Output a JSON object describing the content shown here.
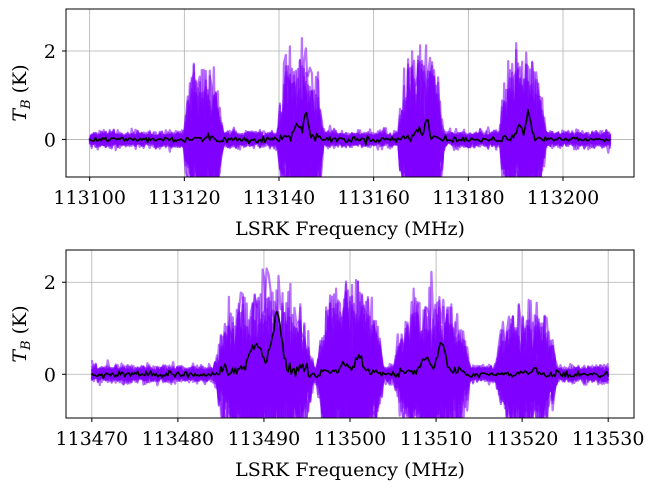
{
  "chart_data": [
    {
      "type": "line",
      "xlabel": "LSRK Frequency (MHz)",
      "ylabel": "T_B (K)",
      "ylabel_parts": {
        "main": "T",
        "sub": "B",
        "unit": "(K)"
      },
      "xlim": [
        113095,
        113215
      ],
      "ylim": [
        -0.85,
        2.95
      ],
      "xticks": [
        113100,
        113120,
        113140,
        113160,
        113180,
        113200
      ],
      "yticks": [
        0,
        2
      ],
      "grid": true,
      "colors": {
        "samples": "#8000ff",
        "mean": "#000000"
      },
      "x_range": [
        113100,
        113210
      ],
      "noise_level": 0.08,
      "peaks": [
        {
          "center": 113124,
          "width": 3.0,
          "sample_amp": 2.05,
          "mean_amp": 0.05
        },
        {
          "center": 113144.5,
          "width": 3.5,
          "sample_amp": 2.7,
          "mean_amp": 0.65
        },
        {
          "center": 113170,
          "width": 3.5,
          "sample_amp": 2.6,
          "mean_amp": 0.45
        },
        {
          "center": 113191.5,
          "width": 3.5,
          "sample_amp": 2.65,
          "mean_amp": 0.6
        }
      ]
    },
    {
      "type": "line",
      "xlabel": "LSRK Frequency (MHz)",
      "ylabel": "T_B (K)",
      "ylabel_parts": {
        "main": "T",
        "sub": "B",
        "unit": "(K)"
      },
      "xlim": [
        113467,
        113533
      ],
      "ylim": [
        -0.95,
        2.7
      ],
      "xticks": [
        113470,
        113480,
        113490,
        113500,
        113510,
        113520,
        113530
      ],
      "yticks": [
        0,
        2
      ],
      "grid": true,
      "colors": {
        "samples": "#8000ff",
        "mean": "#000000"
      },
      "x_range": [
        113470,
        113530
      ],
      "noise_level": 0.08,
      "peaks": [
        {
          "center": 113490,
          "width": 4.2,
          "sample_amp": 2.6,
          "mean_amp": 1.3
        },
        {
          "center": 113500,
          "width": 2.8,
          "sample_amp": 2.45,
          "mean_amp": 0.45
        },
        {
          "center": 113509.5,
          "width": 3.2,
          "sample_amp": 2.55,
          "mean_amp": 0.7
        },
        {
          "center": 113520.5,
          "width": 2.6,
          "sample_amp": 1.95,
          "mean_amp": 0.1
        }
      ]
    }
  ]
}
